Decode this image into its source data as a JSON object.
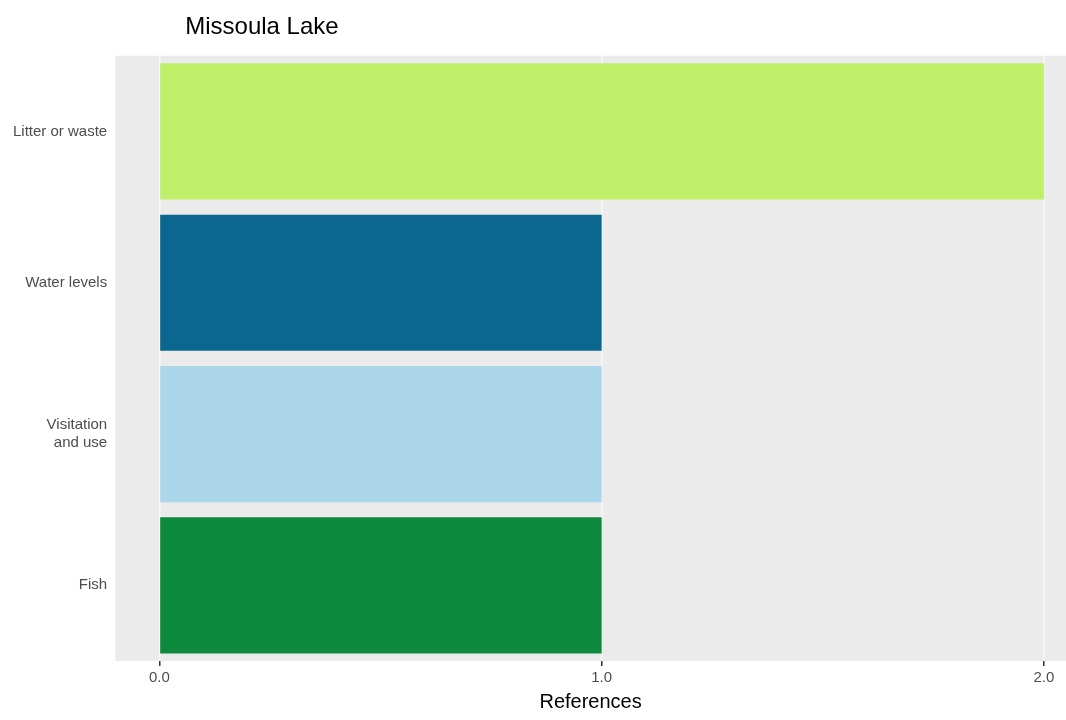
{
  "chart_data": {
    "type": "bar",
    "orientation": "horizontal",
    "title": "Missoula Lake",
    "xlabel": "References",
    "categories": [
      "Litter or waste",
      "Water levels",
      "Visitation and use",
      "Fish"
    ],
    "values": [
      2,
      1,
      1,
      1
    ],
    "colors": [
      "#c0ef6a",
      "#0b6690",
      "#acd7ea",
      "#0e8a3e"
    ],
    "xlim": [
      -0.1,
      2.05
    ],
    "xticks": [
      {
        "value": 0,
        "label": "0.0"
      },
      {
        "value": 1,
        "label": "1.0"
      },
      {
        "value": 2,
        "label": "2.0"
      }
    ],
    "grid": "x",
    "legend": false
  }
}
